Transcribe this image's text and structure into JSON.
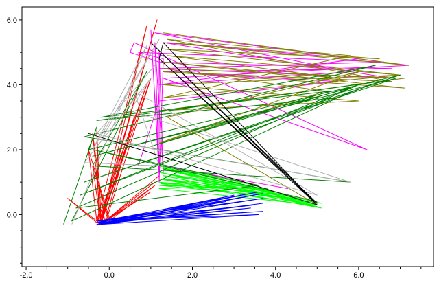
{
  "chart_data": {
    "type": "line",
    "title": "",
    "xlabel": "",
    "ylabel": "",
    "xlim": [
      -2.1,
      7.8
    ],
    "ylim": [
      -1.6,
      6.4
    ],
    "x_ticks": [
      -2.0,
      0.0,
      2.0,
      4.0,
      6.0
    ],
    "x_tick_labels": [
      "-2.0",
      "0.0",
      "2.0",
      "4.0",
      "6.0"
    ],
    "y_ticks": [
      0.0,
      2.0,
      4.0,
      6.0
    ],
    "y_tick_labels": [
      "0.0",
      "2.0",
      "4.0",
      "6.0"
    ],
    "grid": false,
    "legend": "none",
    "series": [
      {
        "color": "#ff0000",
        "points": [
          [
            -0.2,
            -0.2
          ],
          [
            -0.4,
            2.5
          ],
          [
            -0.1,
            -0.3
          ],
          [
            1.0,
            4.2
          ],
          [
            -0.2,
            -0.25
          ],
          [
            0.9,
            5.8
          ],
          [
            -0.3,
            -0.2
          ],
          [
            -0.5,
            2.0
          ],
          [
            0.0,
            -0.1
          ],
          [
            1.1,
            1.0
          ],
          [
            -0.2,
            -0.3
          ],
          [
            1.0,
            0.7
          ],
          [
            -0.1,
            -0.2
          ],
          [
            0.6,
            3.0
          ],
          [
            -0.2,
            -0.1
          ],
          [
            -0.3,
            2.6
          ],
          [
            -0.25,
            -0.3
          ],
          [
            1.15,
            6.0
          ],
          [
            -0.2,
            -0.2
          ],
          [
            0.9,
            4.0
          ],
          [
            -0.3,
            -0.25
          ],
          [
            -1.0,
            0.5
          ],
          [
            -0.2,
            -0.3
          ],
          [
            1.1,
            0.9
          ],
          [
            0.0,
            -0.2
          ],
          [
            -0.4,
            1.5
          ],
          [
            -0.2,
            -0.3
          ],
          [
            0.5,
            2.5
          ],
          [
            -0.1,
            -0.2
          ],
          [
            1.2,
            1.2
          ]
        ]
      },
      {
        "color": "#00ff00",
        "points": [
          [
            1.2,
            1.5
          ],
          [
            5.0,
            0.3
          ],
          [
            1.2,
            1.3
          ],
          [
            4.8,
            0.4
          ],
          [
            1.2,
            1.1
          ],
          [
            5.1,
            0.2
          ],
          [
            1.3,
            1.4
          ],
          [
            4.5,
            0.5
          ],
          [
            1.2,
            0.9
          ],
          [
            3.8,
            0.8
          ],
          [
            1.3,
            1.2
          ],
          [
            5.0,
            0.25
          ],
          [
            1.2,
            1.0
          ],
          [
            4.2,
            0.6
          ],
          [
            1.3,
            1.5
          ],
          [
            3.5,
            0.9
          ],
          [
            1.2,
            0.8
          ],
          [
            4.9,
            0.3
          ],
          [
            1.2,
            1.3
          ],
          [
            4.0,
            0.7
          ],
          [
            1.3,
            1.1
          ],
          [
            5.1,
            0.35
          ],
          [
            1.2,
            1.45
          ],
          [
            3.2,
            1.0
          ],
          [
            1.25,
            0.95
          ],
          [
            4.6,
            0.45
          ]
        ]
      },
      {
        "color": "#0000ff",
        "points": [
          [
            -0.3,
            -0.3
          ],
          [
            3.6,
            0.7
          ],
          [
            -0.2,
            -0.2
          ],
          [
            3.7,
            0.5
          ],
          [
            -0.3,
            -0.3
          ],
          [
            3.5,
            0.3
          ],
          [
            -0.2,
            -0.2
          ],
          [
            3.7,
            0.1
          ],
          [
            -0.3,
            -0.25
          ],
          [
            3.0,
            0.6
          ],
          [
            -0.2,
            -0.3
          ],
          [
            3.6,
            0.0
          ],
          [
            -0.3,
            -0.2
          ],
          [
            2.8,
            0.4
          ],
          [
            -0.2,
            -0.3
          ],
          [
            3.7,
            0.65
          ],
          [
            -0.3,
            -0.25
          ],
          [
            3.4,
            0.2
          ],
          [
            -0.25,
            -0.3
          ],
          [
            3.7,
            0.35
          ]
        ]
      },
      {
        "color": "#ff00ff",
        "points": [
          [
            1.2,
            1.4
          ],
          [
            1.0,
            5.7
          ],
          [
            1.2,
            1.2
          ],
          [
            1.1,
            5.3
          ],
          [
            1.3,
            1.3
          ],
          [
            1.2,
            5.0
          ],
          [
            1.2,
            1.0
          ],
          [
            1.3,
            4.8
          ],
          [
            0.7,
            5.0
          ],
          [
            6.6,
            4.7
          ],
          [
            1.2,
            4.5
          ],
          [
            6.8,
            4.2
          ],
          [
            1.3,
            5.3
          ],
          [
            6.0,
            4.8
          ],
          [
            1.2,
            4.0
          ],
          [
            5.8,
            4.4
          ],
          [
            1.1,
            5.6
          ],
          [
            7.2,
            4.6
          ],
          [
            1.3,
            4.2
          ],
          [
            6.2,
            2.0
          ],
          [
            0.6,
            5.3
          ],
          [
            0.5,
            5.0
          ],
          [
            1.2,
            4.7
          ],
          [
            6.8,
            4.5
          ],
          [
            1.3,
            4.4
          ],
          [
            5.5,
            4.1
          ],
          [
            1.2,
            3.5
          ],
          [
            0.7,
            1.5
          ],
          [
            1.3,
            1.5
          ],
          [
            4.3,
            0.8
          ]
        ]
      },
      {
        "color": "#808000",
        "points": [
          [
            1.3,
            5.6
          ],
          [
            7.2,
            4.6
          ],
          [
            1.4,
            5.3
          ],
          [
            6.5,
            4.8
          ],
          [
            1.3,
            5.1
          ],
          [
            7.0,
            4.3
          ],
          [
            1.4,
            4.9
          ],
          [
            5.5,
            4.2
          ],
          [
            1.3,
            4.7
          ],
          [
            7.1,
            3.9
          ],
          [
            1.3,
            4.4
          ],
          [
            6.8,
            4.1
          ],
          [
            1.4,
            5.4
          ],
          [
            5.8,
            4.9
          ],
          [
            1.3,
            3.6
          ],
          [
            7.0,
            4.3
          ],
          [
            1.3,
            4.0
          ],
          [
            6.0,
            3.5
          ],
          [
            1.2,
            3.2
          ],
          [
            7.1,
            4.2
          ],
          [
            1.3,
            4.5
          ],
          [
            5.2,
            3.8
          ],
          [
            1.2,
            2.2
          ],
          [
            6.0,
            4.4
          ],
          [
            1.4,
            3.0
          ],
          [
            5.0,
            0.3
          ]
        ]
      },
      {
        "color": "#008000",
        "points": [
          [
            -1.1,
            -0.3
          ],
          [
            -0.3,
            2.7
          ],
          [
            -0.5,
            2.0
          ],
          [
            7.0,
            4.3
          ],
          [
            -0.6,
            1.0
          ],
          [
            6.9,
            4.2
          ],
          [
            -0.4,
            1.8
          ],
          [
            5.8,
            3.9
          ],
          [
            -0.7,
            0.6
          ],
          [
            6.5,
            4.1
          ],
          [
            -0.3,
            2.9
          ],
          [
            5.5,
            3.6
          ],
          [
            -0.9,
            -0.2
          ],
          [
            0.9,
            4.4
          ],
          [
            -0.4,
            1.5
          ],
          [
            5.8,
            1.0
          ],
          [
            -0.6,
            2.4
          ],
          [
            6.4,
            4.6
          ],
          [
            -0.2,
            3.0
          ],
          [
            5.3,
            3.8
          ],
          [
            1.0,
            2.1
          ],
          [
            6.0,
            4.0
          ],
          [
            -0.8,
            0.2
          ],
          [
            3.6,
            0.9
          ],
          [
            -0.4,
            2.0
          ],
          [
            5.0,
            0.4
          ]
        ]
      },
      {
        "color": "#b0b0b0",
        "points": [
          [
            -0.9,
            -0.3
          ],
          [
            0.9,
            5.2
          ],
          [
            -0.4,
            2.0
          ],
          [
            1.2,
            5.4
          ],
          [
            -0.2,
            2.3
          ],
          [
            5.8,
            1.0
          ],
          [
            0.5,
            3.2
          ],
          [
            1.0,
            4.2
          ],
          [
            -0.6,
            1.6
          ],
          [
            1.2,
            1.5
          ],
          [
            0.6,
            3.8
          ],
          [
            5.0,
            0.6
          ],
          [
            -0.3,
            2.5
          ],
          [
            1.1,
            4.6
          ]
        ]
      },
      {
        "color": "#000000",
        "points": [
          [
            -0.5,
            2.5
          ],
          [
            5.0,
            0.3
          ],
          [
            1.0,
            5.3
          ],
          [
            5.0,
            0.35
          ],
          [
            1.2,
            4.8
          ],
          [
            5.0,
            0.3
          ],
          [
            1.3,
            5.3
          ],
          [
            1.2,
            4.8
          ]
        ]
      }
    ]
  }
}
